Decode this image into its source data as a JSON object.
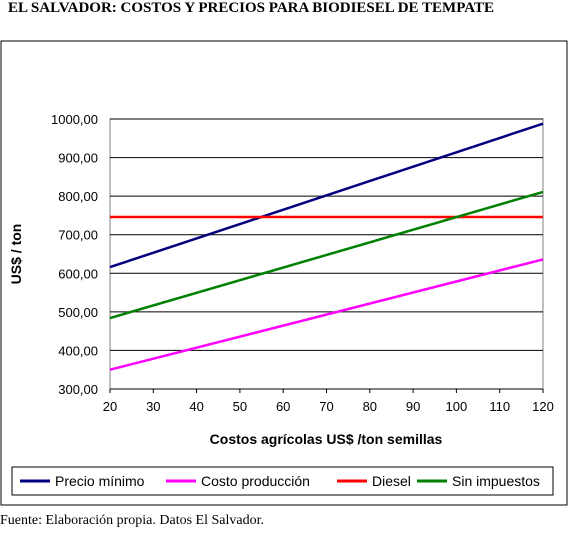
{
  "title": "EL SALVADOR: COSTOS Y PRECIOS PARA BIODIESEL DE TEMPATE",
  "footer": "Fuente: Elaboración propia. Datos El Salvador.",
  "chart_data": {
    "type": "line",
    "xlabel": "Costos agrícolas US$ /ton semillas",
    "ylabel": "US$ / ton",
    "xlim": [
      20,
      120
    ],
    "ylim": [
      300,
      1000
    ],
    "xticks": [
      "20",
      "30",
      "40",
      "50",
      "60",
      "70",
      "80",
      "90",
      "100",
      "110",
      "120"
    ],
    "yticks": [
      "300,00",
      "400,00",
      "500,00",
      "600,00",
      "700,00",
      "800,00",
      "900,00",
      "1000,00"
    ],
    "grid": "horizontal",
    "legend_position": "bottom",
    "series": [
      {
        "name": "Precio mínimo",
        "color": "#000080",
        "x": [
          20,
          120
        ],
        "y": [
          616,
          988
        ]
      },
      {
        "name": "Costo producción",
        "color": "#ff00ff",
        "x": [
          20,
          120
        ],
        "y": [
          350,
          636
        ]
      },
      {
        "name": "Diesel",
        "color": "#ff0000",
        "x": [
          20,
          120
        ],
        "y": [
          746,
          746
        ]
      },
      {
        "name": "Sin impuestos",
        "color": "#008000",
        "x": [
          20,
          120
        ],
        "y": [
          484,
          811
        ]
      }
    ]
  }
}
